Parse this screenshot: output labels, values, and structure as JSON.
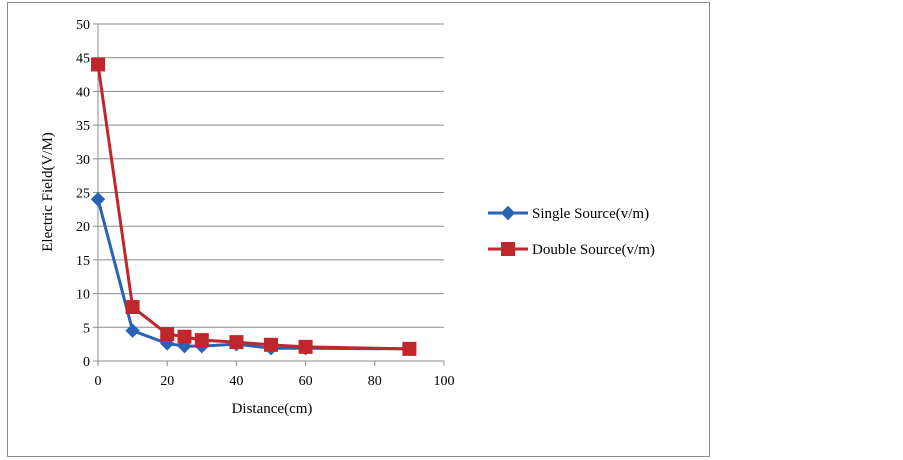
{
  "chart_data": {
    "type": "line",
    "xlabel": "Distance(cm)",
    "ylabel": "Electric Field(V/M)",
    "xlim": [
      0,
      100
    ],
    "ylim": [
      0,
      50
    ],
    "xticks": [
      "0",
      "20",
      "40",
      "60",
      "80",
      "100"
    ],
    "yticks": [
      "0",
      "5",
      "10",
      "15",
      "20",
      "25",
      "30",
      "35",
      "40",
      "45",
      "50"
    ],
    "grid": "horizontal",
    "legend_position": "right",
    "series": [
      {
        "name": "Single Source(v/m)",
        "color": "#2a62b4",
        "marker": "diamond",
        "x": [
          0,
          10,
          20,
          25,
          30,
          40,
          50,
          60,
          90
        ],
        "y": [
          24,
          4.5,
          2.6,
          2.2,
          2.2,
          2.5,
          1.9,
          1.9,
          1.8
        ]
      },
      {
        "name": "Double Source(v/m)",
        "color": "#c0272d",
        "marker": "square",
        "x": [
          0,
          10,
          20,
          25,
          30,
          40,
          50,
          60,
          90
        ],
        "y": [
          44,
          8,
          4,
          3.6,
          3.1,
          2.8,
          2.4,
          2.1,
          1.8
        ]
      }
    ]
  }
}
